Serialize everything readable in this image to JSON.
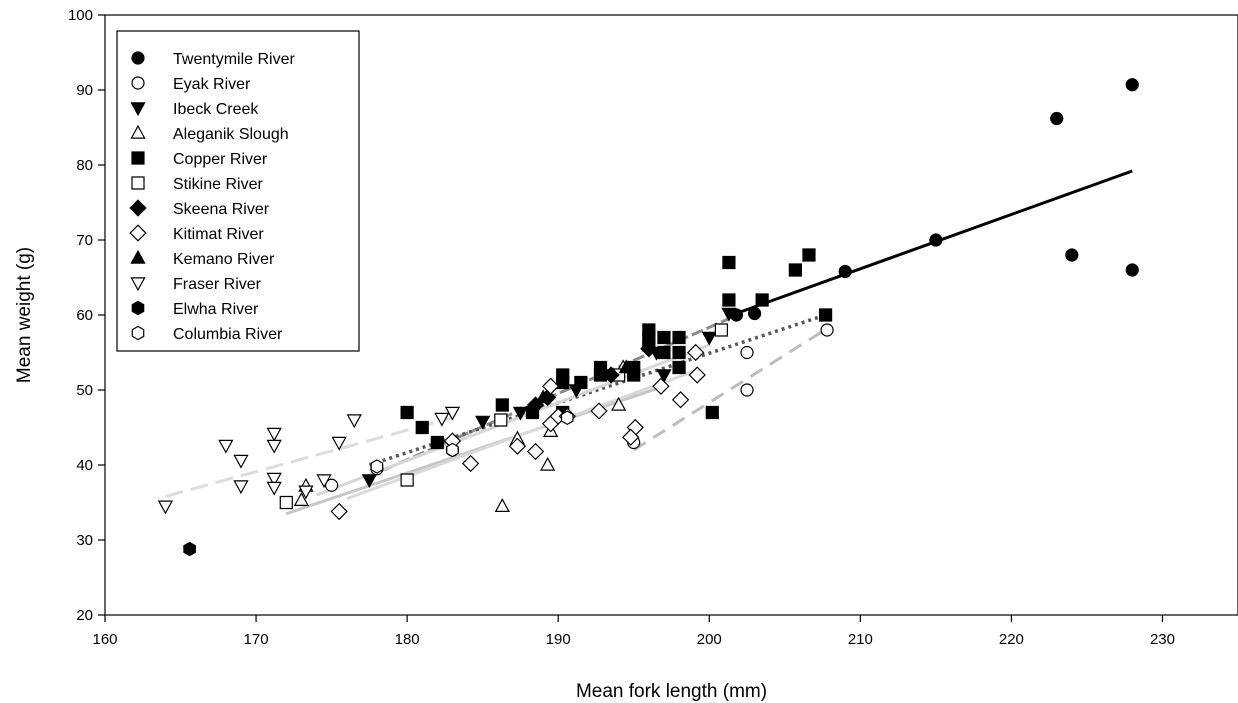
{
  "chart_data": {
    "type": "scatter",
    "title": "",
    "xlabel": "Mean fork length (mm)",
    "ylabel": "Mean weight (g)",
    "xlim": [
      160,
      235
    ],
    "ylim": [
      20,
      100
    ],
    "xticks": [
      160,
      170,
      180,
      190,
      200,
      210,
      220,
      230
    ],
    "yticks": [
      20,
      30,
      40,
      50,
      60,
      70,
      80,
      90,
      100
    ],
    "grid": false,
    "legend_position": "top-left",
    "series": [
      {
        "name": "Twentymile River",
        "marker": "circle",
        "fill": "#000000",
        "points": [
          [
            201.8,
            60
          ],
          [
            203,
            60.2
          ],
          [
            209,
            65.8
          ],
          [
            215,
            70
          ],
          [
            223,
            86.2
          ],
          [
            224,
            68
          ],
          [
            228,
            90.7
          ],
          [
            228,
            66
          ]
        ],
        "fit": {
          "x": [
            201.5,
            228
          ],
          "y": [
            60,
            79.2
          ],
          "dash": "",
          "color": "#000000",
          "width": 3
        }
      },
      {
        "name": "Eyak River",
        "marker": "circle",
        "fill": "#ffffff",
        "points": [
          [
            195,
            43
          ],
          [
            202.5,
            55
          ],
          [
            202.5,
            50
          ],
          [
            207.8,
            58
          ],
          [
            175,
            37.3
          ],
          [
            178,
            39.5
          ],
          [
            183,
            42
          ]
        ],
        "fit": {
          "x": [
            195,
            207.8
          ],
          "y": [
            42,
            58.2
          ],
          "dash": "14 9",
          "color": "#bdbdbd",
          "width": 3
        }
      },
      {
        "name": "Ibeck Creek",
        "marker": "triangle-down",
        "fill": "#000000",
        "points": [
          [
            177.5,
            38
          ],
          [
            185,
            45.8
          ],
          [
            187.5,
            47
          ],
          [
            191.2,
            50
          ],
          [
            193.5,
            52
          ],
          [
            196.5,
            55
          ],
          [
            197,
            52
          ],
          [
            201.3,
            60.2
          ],
          [
            200,
            57
          ]
        ],
        "fit": {
          "x": [
            177.5,
            201.3
          ],
          "y": [
            38.5,
            59.5
          ],
          "dash": "12 4",
          "color": "#8c8c8c",
          "width": 3
        }
      },
      {
        "name": "Aleganik Slough",
        "marker": "triangle-up",
        "fill": "#ffffff",
        "points": [
          [
            173,
            35.3
          ],
          [
            173.3,
            37.2
          ],
          [
            186.3,
            34.5
          ],
          [
            187.3,
            43.5
          ],
          [
            189.3,
            40
          ],
          [
            189.5,
            44.5
          ],
          [
            194,
            48
          ],
          [
            194.3,
            53
          ]
        ],
        "fit": {
          "x": [
            172,
            197
          ],
          "y": [
            33.5,
            50.5
          ],
          "dash": "",
          "color": "#c6c6c6",
          "width": 3
        }
      },
      {
        "name": "Copper River",
        "marker": "square",
        "fill": "#000000",
        "points": [
          [
            180,
            47
          ],
          [
            181,
            45
          ],
          [
            182,
            43
          ],
          [
            186.3,
            48
          ],
          [
            188.3,
            47
          ],
          [
            190.3,
            52
          ],
          [
            190.3,
            51
          ],
          [
            190.3,
            47
          ],
          [
            191.5,
            51
          ],
          [
            192.8,
            52
          ],
          [
            192.8,
            53
          ],
          [
            195,
            53
          ],
          [
            195,
            52
          ],
          [
            196,
            56
          ],
          [
            196,
            57
          ],
          [
            196,
            58
          ],
          [
            197,
            57
          ],
          [
            197,
            55
          ],
          [
            198,
            55
          ],
          [
            198,
            53
          ],
          [
            198,
            57
          ],
          [
            200.2,
            47
          ],
          [
            201.3,
            62
          ],
          [
            201.3,
            67
          ],
          [
            203.5,
            62
          ],
          [
            205.7,
            66
          ],
          [
            206.6,
            68
          ],
          [
            207.7,
            60
          ]
        ],
        "fit": {
          "x": [
            177.5,
            207.7
          ],
          "y": [
            40,
            60
          ],
          "dash": "3 4",
          "color": "#595959",
          "width": 3.5
        }
      },
      {
        "name": "Stikine River",
        "marker": "square",
        "fill": "#ffffff",
        "points": [
          [
            172,
            35
          ],
          [
            180,
            38
          ],
          [
            186.2,
            46
          ],
          [
            194,
            52
          ],
          [
            200.8,
            58
          ]
        ],
        "fit": {
          "x": [
            174,
            200
          ],
          "y": [
            36,
            56
          ],
          "dash": "",
          "color": "#d6d6d6",
          "width": 3
        }
      },
      {
        "name": "Skeena River",
        "marker": "diamond",
        "fill": "#000000",
        "points": [
          [
            188.5,
            48
          ],
          [
            189.3,
            49
          ],
          [
            193.5,
            52
          ],
          [
            196,
            55.5
          ]
        ],
        "fit": null
      },
      {
        "name": "Kitimat River",
        "marker": "diamond",
        "fill": "#ffffff",
        "points": [
          [
            175.5,
            33.8
          ],
          [
            183,
            43.2
          ],
          [
            184.2,
            40.2
          ],
          [
            187.3,
            42.5
          ],
          [
            188.5,
            41.8
          ],
          [
            189.5,
            50.5
          ],
          [
            189.5,
            45.5
          ],
          [
            190,
            46.5
          ],
          [
            190.6,
            46.5
          ],
          [
            192.7,
            47.2
          ],
          [
            195.1,
            45
          ],
          [
            194.8,
            43.7
          ],
          [
            196.8,
            50.5
          ],
          [
            198.1,
            48.7
          ],
          [
            199.1,
            55
          ],
          [
            199.2,
            52
          ]
        ],
        "fit": {
          "x": [
            176,
            199
          ],
          "y": [
            35.5,
            52.5
          ],
          "dash": "",
          "color": "#d9d9d9",
          "width": 3
        }
      },
      {
        "name": "Kemano River",
        "marker": "triangle-up",
        "fill": "#000000",
        "points": [
          [
            189,
            49
          ],
          [
            194.5,
            53
          ]
        ],
        "fit": null
      },
      {
        "name": "Fraser River",
        "marker": "triangle-down",
        "fill": "#ffffff",
        "points": [
          [
            164,
            34.5
          ],
          [
            168,
            42.6
          ],
          [
            169,
            37.2
          ],
          [
            169,
            40.6
          ],
          [
            171.2,
            44.2
          ],
          [
            171.2,
            42.6
          ],
          [
            171.2,
            38.2
          ],
          [
            171.2,
            37
          ],
          [
            173.3,
            36.5
          ],
          [
            174.5,
            38
          ],
          [
            175.5,
            43
          ],
          [
            176.5,
            46
          ],
          [
            182.3,
            46.2
          ],
          [
            183,
            47
          ]
        ],
        "fit": {
          "x": [
            164,
            183
          ],
          "y": [
            35.8,
            46.3
          ],
          "dash": "18 8",
          "color": "#dcdcdc",
          "width": 3
        }
      },
      {
        "name": "Elwha River",
        "marker": "hexagon",
        "fill": "#000000",
        "points": [
          [
            165.6,
            28.8
          ]
        ],
        "fit": null
      },
      {
        "name": "Columbia River",
        "marker": "hexagon",
        "fill": "#ffffff",
        "points": [
          [
            178,
            39.8
          ],
          [
            183,
            42
          ],
          [
            190.6,
            46.3
          ]
        ],
        "fit": null
      }
    ]
  }
}
